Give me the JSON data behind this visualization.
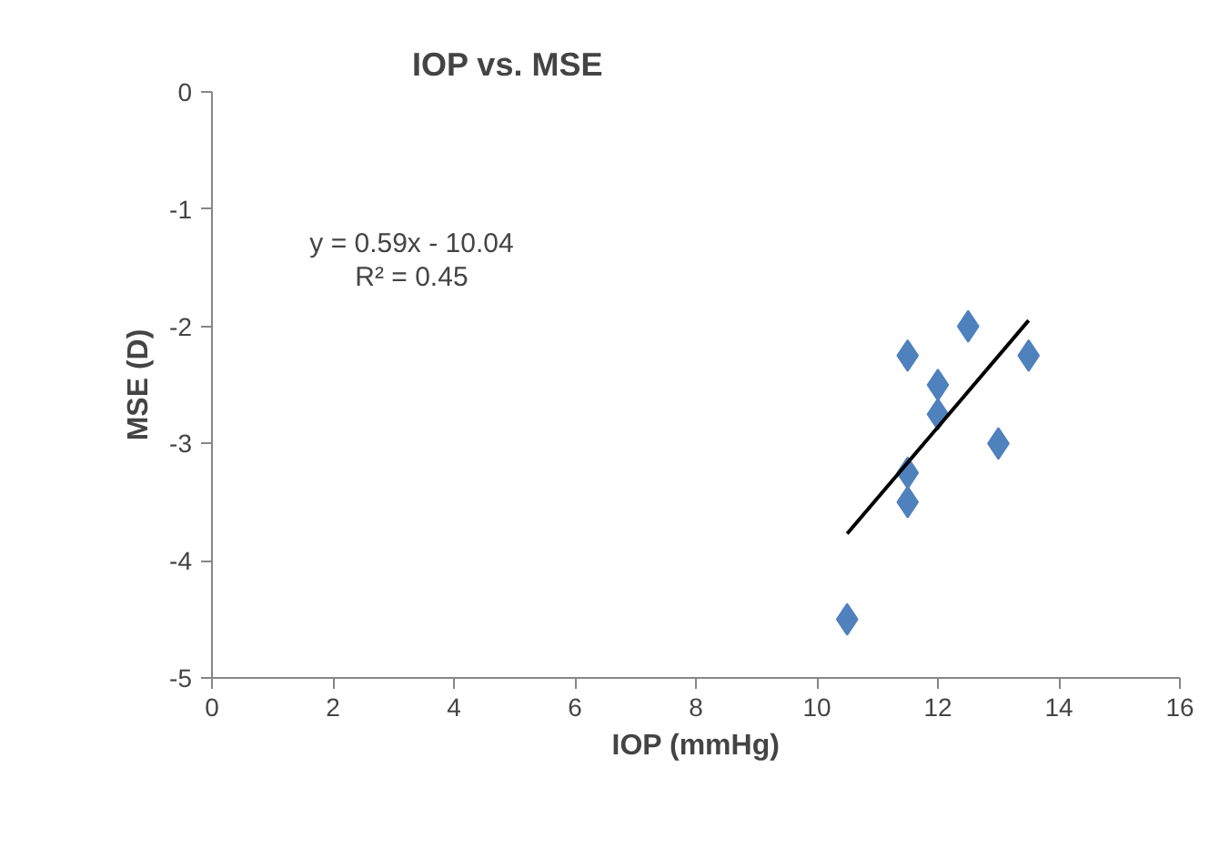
{
  "chart_data": {
    "type": "scatter",
    "title": "IOP vs. MSE",
    "xlabel": "IOP (mmHg)",
    "ylabel": "MSE (D)",
    "xlim": [
      0,
      16
    ],
    "xticks": [
      0,
      2,
      4,
      6,
      8,
      10,
      12,
      14,
      16
    ],
    "ylim": [
      -5,
      0
    ],
    "yticks": [
      -5,
      -4,
      -3,
      -2,
      -1,
      0
    ],
    "grid": false,
    "marker": "diamond",
    "annotations": [
      "y = 0.59x - 10.04",
      "R² = 0.45"
    ],
    "series": [
      {
        "color": "#4f81bd",
        "x": [
          10.5,
          11.5,
          11.5,
          11.5,
          12,
          12,
          12.5,
          13,
          13.5
        ],
        "values": [
          -4.5,
          -2.25,
          -3.25,
          -3.5,
          -2.5,
          -2.75,
          -2,
          -3,
          -2.25
        ]
      },
      {
        "type": "line",
        "marker": "none",
        "color": "#000000",
        "x": [
          10.5,
          13.5
        ],
        "values": [
          -3.77,
          -1.95
        ]
      }
    ]
  }
}
